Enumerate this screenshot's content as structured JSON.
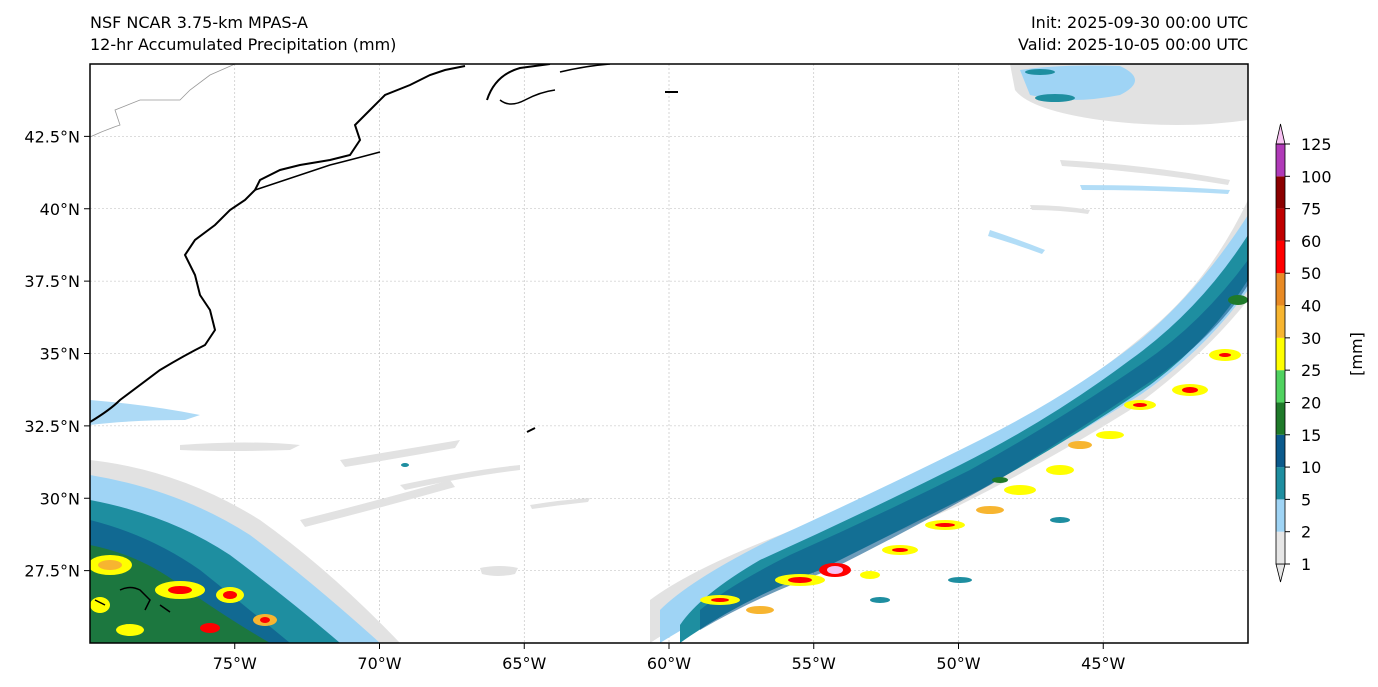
{
  "header": {
    "model": "NSF NCAR 3.75-km MPAS-A",
    "field": "12-hr Accumulated Precipitation (mm)",
    "init": "Init: 2025-09-30 00:00 UTC",
    "valid": "Valid: 2025-10-05 00:00 UTC"
  },
  "map": {
    "lon_range": [
      -80,
      -40
    ],
    "lat_range": [
      25,
      45
    ],
    "lat_ticks": [
      {
        "value": 42.5,
        "label": "42.5°N"
      },
      {
        "value": 40,
        "label": "40°N"
      },
      {
        "value": 37.5,
        "label": "37.5°N"
      },
      {
        "value": 35,
        "label": "35°N"
      },
      {
        "value": 32.5,
        "label": "32.5°N"
      },
      {
        "value": 30,
        "label": "30°N"
      },
      {
        "value": 27.5,
        "label": "27.5°N"
      }
    ],
    "lon_ticks": [
      {
        "value": -75,
        "label": "75°W"
      },
      {
        "value": -70,
        "label": "70°W"
      },
      {
        "value": -65,
        "label": "65°W"
      },
      {
        "value": -60,
        "label": "60°W"
      },
      {
        "value": -55,
        "label": "55°W"
      },
      {
        "value": -50,
        "label": "50°W"
      },
      {
        "value": -45,
        "label": "45°W"
      }
    ],
    "gridlines": true
  },
  "colorbar": {
    "unit": "[mm]",
    "levels": [
      "1",
      "2",
      "5",
      "10",
      "15",
      "20",
      "25",
      "30",
      "40",
      "50",
      "60",
      "75",
      "100",
      "125"
    ],
    "colors": [
      "#e6e6e6",
      "#9fd4f5",
      "#1e8ea0",
      "#0b5a8c",
      "#1f7a2a",
      "#4fd25f",
      "#ffff00",
      "#f7b530",
      "#e88a24",
      "#ff0000",
      "#c00000",
      "#8b0000",
      "#b03ab8",
      "#f7c2f2"
    ],
    "extend": "both"
  },
  "colors": {
    "light_gray": "#e2e2e2",
    "light_blue": "#9fd4f5",
    "teal": "#1e8ea0",
    "dark_blue": "#0b5a8c",
    "green": "#1f7a2a",
    "yellow": "#ffff00",
    "orange": "#f7b530",
    "red": "#ff0000",
    "pink": "#f7c2f2"
  }
}
